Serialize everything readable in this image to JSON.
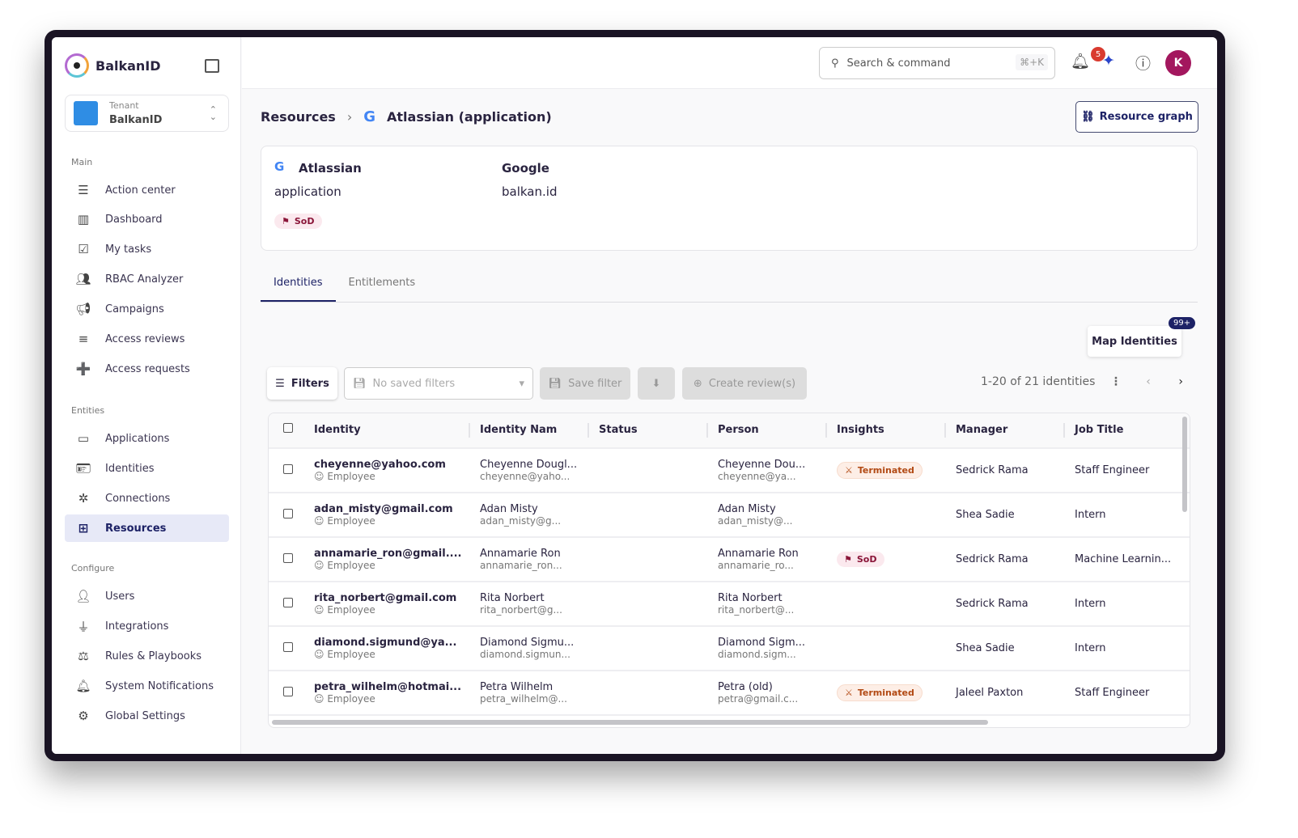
{
  "app": {
    "name": "BalkanID",
    "tenant_label": "Tenant",
    "tenant": "BalkanID"
  },
  "sidebar": {
    "sections": [
      {
        "title": "Main",
        "items": [
          "Action center",
          "Dashboard",
          "My tasks",
          "RBAC Analyzer",
          "Campaigns",
          "Access reviews",
          "Access requests"
        ]
      },
      {
        "title": "Entities",
        "items": [
          "Applications",
          "Identities",
          "Connections",
          "Resources"
        ]
      },
      {
        "title": "Configure",
        "items": [
          "Users",
          "Integrations",
          "Rules & Playbooks",
          "System Notifications",
          "Global Settings"
        ]
      }
    ],
    "active": "Resources"
  },
  "header": {
    "search_placeholder": "Search & command",
    "shortcut": "⌘+K",
    "notifications": "5",
    "avatar": "K"
  },
  "breadcrumb": {
    "root": "Resources",
    "current": "Atlassian (application)"
  },
  "resource_graph_label": "Resource graph",
  "resource": {
    "name": "Atlassian",
    "type": "application",
    "provider": "Google",
    "domain": "balkan.id",
    "tag": "SoD"
  },
  "tabs": [
    "Identities",
    "Entitlements"
  ],
  "map_identities": {
    "label": "Map Identities",
    "badge": "99+"
  },
  "toolbar": {
    "filters": "Filters",
    "saved_placeholder": "No saved filters",
    "save_filter": "Save filter",
    "create_review": "Create review(s)",
    "pagination": "1-20 of 21 identities"
  },
  "table": {
    "columns": [
      "Identity",
      "Identity Nam",
      "Status",
      "Person",
      "Insights",
      "Manager",
      "Job Title"
    ],
    "rows": [
      {
        "identity": "cheyenne@yahoo.com",
        "kind": "Employee",
        "name": "Cheyenne Dougl...",
        "name_sub": "cheyenne@yaho...",
        "status": "",
        "person": "Cheyenne Dou...",
        "person_sub": "cheyenne@ya...",
        "insight": "Terminated",
        "manager": "Sedrick Rama",
        "title": "Staff Engineer"
      },
      {
        "identity": "adan_misty@gmail.com",
        "kind": "Employee",
        "name": "Adan Misty",
        "name_sub": "adan_misty@g...",
        "status": "",
        "person": "Adan Misty",
        "person_sub": "adan_misty@...",
        "insight": "",
        "manager": "Shea Sadie",
        "title": "Intern"
      },
      {
        "identity": "annamarie_ron@gmail....",
        "kind": "Employee",
        "name": "Annamarie Ron",
        "name_sub": "annamarie_ron...",
        "status": "",
        "person": "Annamarie Ron",
        "person_sub": "annamarie_ro...",
        "insight": "SoD",
        "manager": "Sedrick Rama",
        "title": "Machine Learnin..."
      },
      {
        "identity": "rita_norbert@gmail.com",
        "kind": "Employee",
        "name": "Rita Norbert",
        "name_sub": "rita_norbert@g...",
        "status": "",
        "person": "Rita Norbert",
        "person_sub": "rita_norbert@...",
        "insight": "",
        "manager": "Sedrick Rama",
        "title": "Intern"
      },
      {
        "identity": "diamond.sigmund@ya...",
        "kind": "Employee",
        "name": "Diamond Sigmu...",
        "name_sub": "diamond.sigmun...",
        "status": "",
        "person": "Diamond Sigm...",
        "person_sub": "diamond.sigm...",
        "insight": "",
        "manager": "Shea Sadie",
        "title": "Intern"
      },
      {
        "identity": "petra_wilhelm@hotmai...",
        "kind": "Employee",
        "name": "Petra Wilhelm",
        "name_sub": "petra_wilhelm@...",
        "status": "",
        "person": "Petra (old)",
        "person_sub": "petra@gmail.c...",
        "insight": "Terminated",
        "manager": "Jaleel Paxton",
        "title": "Staff Engineer"
      }
    ]
  },
  "colors": {
    "accent": "#1d2266",
    "active_bg": "#e7e9f7",
    "avatar": "#a3175e",
    "sod": "#8a1538",
    "terminated": "#b24a14"
  }
}
